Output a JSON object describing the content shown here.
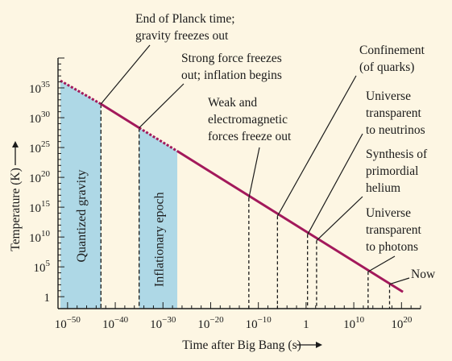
{
  "chart_data": {
    "type": "line",
    "xlabel": "Time after Big Bang (s)",
    "ylabel": "Temperature (K)",
    "x_scale": "log",
    "y_scale": "log",
    "xlim_exp": [
      -52,
      24
    ],
    "ylim_exp": [
      -2,
      40
    ],
    "x_ticks": [
      {
        "exp": -50,
        "base": "10",
        "sup": "−50"
      },
      {
        "exp": -40,
        "base": "10",
        "sup": "−40"
      },
      {
        "exp": -30,
        "base": "10",
        "sup": "−30"
      },
      {
        "exp": -20,
        "base": "10",
        "sup": "−20"
      },
      {
        "exp": -10,
        "base": "10",
        "sup": "−10"
      },
      {
        "exp": 0,
        "base": "1",
        "sup": ""
      },
      {
        "exp": 10,
        "base": "10",
        "sup": "10"
      },
      {
        "exp": 20,
        "base": "10",
        "sup": "20"
      }
    ],
    "y_ticks": [
      {
        "exp": 0,
        "base": "1",
        "sup": ""
      },
      {
        "exp": 5,
        "base": "10",
        "sup": "5"
      },
      {
        "exp": 10,
        "base": "10",
        "sup": "10"
      },
      {
        "exp": 15,
        "base": "10",
        "sup": "15"
      },
      {
        "exp": 20,
        "base": "10",
        "sup": "20"
      },
      {
        "exp": 25,
        "base": "10",
        "sup": "25"
      },
      {
        "exp": 30,
        "base": "10",
        "sup": "30"
      },
      {
        "exp": 35,
        "base": "10",
        "sup": "35"
      }
    ],
    "series": [
      {
        "line_color": "#a3195b",
        "dashed_segments": [
          {
            "x": [
              -51.5,
              -43
            ],
            "y": [
              36.2,
              32.3
            ]
          },
          {
            "x": [
              -35,
              -27
            ],
            "y": [
              28.3,
              24.4
            ]
          }
        ],
        "solid_segments": [
          {
            "x": [
              -43,
              -35
            ],
            "y": [
              32.3,
              28.3
            ]
          },
          {
            "x": [
              -27,
              20.3
            ],
            "y": [
              24.4,
              0.8
            ]
          }
        ]
      }
    ],
    "shaded_regions": [
      {
        "label": "Quantized gravity",
        "x_exp": [
          -51.5,
          -43
        ],
        "color": "#aed8e6"
      },
      {
        "label": "Inflationary epoch",
        "x_exp": [
          -35,
          -27
        ],
        "color": "#aed8e6"
      }
    ],
    "events": [
      {
        "lines": [
          "End of Planck time;",
          "gravity freezes out"
        ],
        "x_exp": -43,
        "y_exp": 32.3
      },
      {
        "lines": [
          "Strong force freezes",
          "out; inflation begins"
        ],
        "x_exp": -35,
        "y_exp": 28.3
      },
      {
        "lines": [
          "Weak and",
          "electromagnetic",
          "forces freeze out"
        ],
        "x_exp": -12,
        "y_exp": 16.5
      },
      {
        "lines": [
          "Confinement",
          "(of quarks)"
        ],
        "x_exp": -6,
        "y_exp": 13.5
      },
      {
        "lines": [
          "Universe",
          "transparent",
          "to neutrinos"
        ],
        "x_exp": 0.3,
        "y_exp": 10.4
      },
      {
        "lines": [
          "Synthesis of",
          "primordial",
          "helium"
        ],
        "x_exp": 2.2,
        "y_exp": 9.4
      },
      {
        "lines": [
          "Universe",
          "transparent",
          "to photons"
        ],
        "x_exp": 13,
        "y_exp": 4.2
      },
      {
        "lines": [
          "Now"
        ],
        "x_exp": 17.5,
        "y_exp": 2.1
      }
    ]
  },
  "colors": {
    "background": "#fdf6e3",
    "shade": "#aed8e6",
    "curve": "#a3195b",
    "ink": "#1b1b1b"
  }
}
